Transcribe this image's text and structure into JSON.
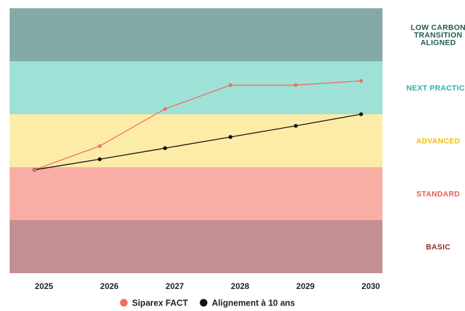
{
  "chart_data": {
    "type": "line",
    "x": [
      "2025",
      "2026",
      "2027",
      "2028",
      "2029",
      "2030"
    ],
    "bands": [
      {
        "label_lines": [
          "LOW CARBON",
          "TRANSITION",
          "ALIGNED"
        ],
        "fill": "#84aaa6",
        "text_color": "#1f5c52"
      },
      {
        "label_lines": [
          "NEXT PRACTICE"
        ],
        "fill": "#9de1d7",
        "text_color": "#2bb3a5"
      },
      {
        "label_lines": [
          "ADVANCED"
        ],
        "fill": "#fdeba8",
        "text_color": "#f1bd12"
      },
      {
        "label_lines": [
          "STANDARD"
        ],
        "fill": "#f9aea5",
        "text_color": "#e2604e"
      },
      {
        "label_lines": [
          "BASIC"
        ],
        "fill": "#c48f91",
        "text_color": "#9a2a2a"
      }
    ],
    "ylim": [
      0,
      5
    ],
    "series": [
      {
        "name": "Siparex FACT",
        "color": "#f26b5b",
        "values": [
          1.95,
          2.4,
          3.1,
          3.55,
          3.55,
          3.63
        ]
      },
      {
        "name": "Alignement à 10 ans",
        "color": "#111111",
        "values": [
          1.95,
          2.15,
          2.36,
          2.57,
          2.78,
          3.0
        ]
      }
    ],
    "grid": false,
    "legend_position": "bottom-center"
  }
}
